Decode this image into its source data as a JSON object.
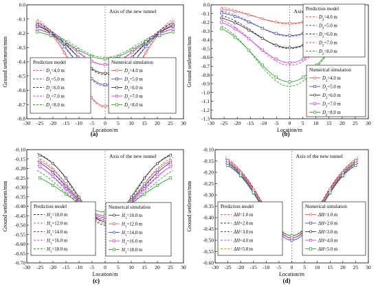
{
  "chart_data": [
    {
      "type": "line",
      "panel_label": "(a)",
      "xlabel": "Location/m",
      "ylabel": "Ground settlement/mm",
      "xlim": [
        -30,
        30
      ],
      "ylim": [
        -0.8,
        0
      ],
      "xticks": [
        -30,
        -25,
        -20,
        -15,
        -10,
        -5,
        0,
        5,
        10,
        15,
        20,
        25,
        30
      ],
      "yticks": [
        "0.0",
        "-0.1",
        "-0.2",
        "-0.3",
        "-0.4",
        "-0.5",
        "-0.6",
        "-0.7",
        "-0.8"
      ],
      "annotation": "Axis of the new tunnel",
      "legends": [
        {
          "title": "Prediction model",
          "entries": [
            "D1=4.0 m",
            "D1=5.0 m",
            "D1=6.0 m",
            "D1=7.0 m",
            "D1=8.0 m"
          ]
        },
        {
          "title": "Numerical simulation",
          "entries": [
            "D1=4.0 m",
            "D1=5.0 m",
            "D1=6.0 m",
            "D1=7.0 m",
            "D1=8.0 m"
          ]
        }
      ],
      "series": [
        {
          "group": "Prediction model",
          "entry": 0,
          "color": "#e06060",
          "style": "dashed",
          "peak": -0.72,
          "edge": -0.1,
          "edge_x": 26,
          "width": 12
        },
        {
          "group": "Prediction model",
          "entry": 1,
          "color": "#4a4ab8",
          "style": "dashed",
          "peak": -0.57,
          "edge": -0.12,
          "edge_x": 26,
          "width": 12
        },
        {
          "group": "Prediction model",
          "entry": 2,
          "color": "#333333",
          "style": "dashed",
          "peak": -0.49,
          "edge": -0.13,
          "edge_x": 26,
          "width": 12
        },
        {
          "group": "Prediction model",
          "entry": 3,
          "color": "#d040d0",
          "style": "dashed",
          "peak": -0.42,
          "edge": -0.15,
          "edge_x": 26,
          "width": 12
        },
        {
          "group": "Prediction model",
          "entry": 4,
          "color": "#30a030",
          "style": "dashed",
          "peak": -0.37,
          "edge": -0.17,
          "edge_x": 26,
          "width": 12
        },
        {
          "group": "Numerical simulation",
          "entry": 0,
          "color": "#e06060",
          "style": "solid",
          "peak": -0.71,
          "edge": -0.12,
          "edge_x": 26,
          "width": 12
        },
        {
          "group": "Numerical simulation",
          "entry": 1,
          "color": "#4a4ab8",
          "style": "solid",
          "peak": -0.56,
          "edge": -0.14,
          "edge_x": 26,
          "width": 12
        },
        {
          "group": "Numerical simulation",
          "entry": 2,
          "color": "#333333",
          "style": "solid",
          "peak": -0.48,
          "edge": -0.15,
          "edge_x": 26,
          "width": 12
        },
        {
          "group": "Numerical simulation",
          "entry": 3,
          "color": "#d040d0",
          "style": "solid",
          "peak": -0.42,
          "edge": -0.17,
          "edge_x": 26,
          "width": 12
        },
        {
          "group": "Numerical simulation",
          "entry": 4,
          "color": "#30a030",
          "style": "solid",
          "peak": -0.38,
          "edge": -0.19,
          "edge_x": 26,
          "width": 12
        }
      ]
    },
    {
      "type": "line",
      "panel_label": "(b)",
      "xlabel": "Location/m",
      "ylabel": "Ground settlement/mm",
      "xlim": [
        -30,
        30
      ],
      "ylim": [
        -1.3,
        0
      ],
      "xticks": [
        -30,
        -25,
        -20,
        -15,
        -10,
        -5,
        0,
        5,
        10,
        15,
        20,
        25,
        30
      ],
      "yticks": [
        "0.0",
        "-0.1",
        "-0.2",
        "-0.3",
        "-0.4",
        "-0.5",
        "-0.6",
        "-0.7",
        "-0.8",
        "-0.9",
        "-1.0",
        "-1.1",
        "-1.2",
        "-1.3"
      ],
      "annotation": "Axis of the new tunnel",
      "legends": [
        {
          "title": "Prediction model",
          "entries": [
            "D2=4.0 m",
            "D2=5.0 m",
            "D2=6.0 m",
            "D2=7.0 m",
            "D2=8.0 m"
          ]
        },
        {
          "title": "Numerical simulation",
          "entries": [
            "D2=4.0 m",
            "D2=5.0 m",
            "D2=6.0 m",
            "D2=7.0 m",
            "D2=8.0 m"
          ]
        }
      ],
      "series": [
        {
          "group": "Prediction model",
          "entry": 0,
          "color": "#e06060",
          "style": "dashed",
          "peak": -0.22,
          "edge": -0.03,
          "edge_x": 26,
          "width": 13
        },
        {
          "group": "Prediction model",
          "entry": 1,
          "color": "#4a4ab8",
          "style": "dashed",
          "peak": -0.36,
          "edge": -0.07,
          "edge_x": 26,
          "width": 13
        },
        {
          "group": "Prediction model",
          "entry": 2,
          "color": "#333333",
          "style": "dashed",
          "peak": -0.5,
          "edge": -0.12,
          "edge_x": 26,
          "width": 13
        },
        {
          "group": "Prediction model",
          "entry": 3,
          "color": "#d040d0",
          "style": "dashed",
          "peak": -0.69,
          "edge": -0.17,
          "edge_x": 26,
          "width": 13
        },
        {
          "group": "Prediction model",
          "entry": 4,
          "color": "#30a030",
          "style": "dashed",
          "peak": -0.93,
          "edge": -0.24,
          "edge_x": 26,
          "width": 13
        },
        {
          "group": "Numerical simulation",
          "entry": 0,
          "color": "#e06060",
          "style": "solid",
          "peak": -0.21,
          "edge": -0.05,
          "edge_x": 26,
          "width": 13
        },
        {
          "group": "Numerical simulation",
          "entry": 1,
          "color": "#4a4ab8",
          "style": "solid",
          "peak": -0.35,
          "edge": -0.09,
          "edge_x": 26,
          "width": 13
        },
        {
          "group": "Numerical simulation",
          "entry": 2,
          "color": "#333333",
          "style": "solid",
          "peak": -0.49,
          "edge": -0.15,
          "edge_x": 26,
          "width": 13
        },
        {
          "group": "Numerical simulation",
          "entry": 3,
          "color": "#d040d0",
          "style": "solid",
          "peak": -0.66,
          "edge": -0.2,
          "edge_x": 26,
          "width": 13
        },
        {
          "group": "Numerical simulation",
          "entry": 4,
          "color": "#30a030",
          "style": "solid",
          "peak": -0.88,
          "edge": -0.27,
          "edge_x": 26,
          "width": 13
        }
      ]
    },
    {
      "type": "line",
      "panel_label": "(c)",
      "xlabel": "Location/m",
      "ylabel": "Ground settlement/mm",
      "xlim": [
        -30,
        30
      ],
      "ylim": [
        -0.7,
        -0.1
      ],
      "xticks": [
        -30,
        -25,
        -20,
        -15,
        -10,
        -5,
        0,
        5,
        10,
        15,
        20,
        25,
        30
      ],
      "yticks": [
        "-0.10",
        "-0.15",
        "-0.20",
        "-0.25",
        "-0.30",
        "-0.35",
        "-0.40",
        "-0.45",
        "-0.50",
        "-0.55",
        "-0.60",
        "-0.65",
        "-0.70"
      ],
      "annotation": "Axis of the new tunnel",
      "legends": [
        {
          "title": "Prediction model",
          "entries": [
            "H1=10.0 m",
            "H1=12.0 m",
            "H1=14.0 m",
            "H1=16.0 m",
            "H1=18.0 m"
          ]
        },
        {
          "title": "Numerical simulation",
          "entries": [
            "H1=10.0 m",
            "H1=12.0 m",
            "H1=14.0 m",
            "H1=16.0 m",
            "H1=18.0 m"
          ]
        }
      ],
      "series": [
        {
          "group": "Prediction model",
          "entry": 0,
          "color": "#333333",
          "style": "dashed",
          "peak": -0.5,
          "edge": -0.12,
          "edge_x": 26,
          "width": 11
        },
        {
          "group": "Prediction model",
          "entry": 1,
          "color": "#e06060",
          "style": "dashed",
          "peak": -0.49,
          "edge": -0.14,
          "edge_x": 26,
          "width": 12
        },
        {
          "group": "Prediction model",
          "entry": 2,
          "color": "#4a4ab8",
          "style": "dashed",
          "peak": -0.48,
          "edge": -0.16,
          "edge_x": 26,
          "width": 13
        },
        {
          "group": "Prediction model",
          "entry": 3,
          "color": "#d040d0",
          "style": "dashed",
          "peak": -0.47,
          "edge": -0.18,
          "edge_x": 26,
          "width": 14
        },
        {
          "group": "Prediction model",
          "entry": 4,
          "color": "#30a030",
          "style": "dashed",
          "peak": -0.45,
          "edge": -0.21,
          "edge_x": 26,
          "width": 15
        },
        {
          "group": "Numerical simulation",
          "entry": 0,
          "color": "#333333",
          "style": "solid",
          "peak": -0.48,
          "edge": -0.13,
          "edge_x": 25,
          "width": 11
        },
        {
          "group": "Numerical simulation",
          "entry": 1,
          "color": "#e06060",
          "style": "solid",
          "peak": -0.47,
          "edge": -0.16,
          "edge_x": 25,
          "width": 12
        },
        {
          "group": "Numerical simulation",
          "entry": 2,
          "color": "#4a4ab8",
          "style": "solid",
          "peak": -0.46,
          "edge": -0.17,
          "edge_x": 25,
          "width": 13
        },
        {
          "group": "Numerical simulation",
          "entry": 3,
          "color": "#d040d0",
          "style": "solid",
          "peak": -0.45,
          "edge": -0.19,
          "edge_x": 25,
          "width": 14
        },
        {
          "group": "Numerical simulation",
          "entry": 4,
          "color": "#30a030",
          "style": "solid",
          "peak": -0.43,
          "edge": -0.25,
          "edge_x": 25,
          "width": 15
        }
      ]
    },
    {
      "type": "line",
      "panel_label": "(d)",
      "xlabel": "Location/m",
      "ylabel": "Ground settlement/mm",
      "xlim": [
        -30,
        30
      ],
      "ylim": [
        -0.6,
        -0.1
      ],
      "xticks": [
        -30,
        -25,
        -20,
        -15,
        -10,
        -5,
        0,
        5,
        10,
        15,
        20,
        25,
        30
      ],
      "yticks": [
        "-0.10",
        "-0.15",
        "-0.20",
        "-0.25",
        "-0.30",
        "-0.35",
        "-0.40",
        "-0.45",
        "-0.50",
        "-0.55",
        "-0.60"
      ],
      "annotation": "Axis of the new tunnel",
      "legends": [
        {
          "title": "Prediction model",
          "entries": [
            "ΔH=1.0 m",
            "ΔH=2.0 m",
            "ΔH=3.0 m",
            "ΔH=4.0 m",
            "ΔH=5.0 m"
          ]
        },
        {
          "title": "Numerical simulation",
          "entries": [
            "ΔH=1.0 m",
            "ΔH=2.0 m",
            "ΔH=3.0 m",
            "ΔH=4.0 m",
            "ΔH=5.0 m"
          ]
        }
      ],
      "series": [
        {
          "group": "Prediction model",
          "entry": 0,
          "color": "#e06060",
          "style": "dashed",
          "peak": -0.49,
          "edge": -0.15,
          "edge_x": 26,
          "width": 11
        },
        {
          "group": "Prediction model",
          "entry": 1,
          "color": "#333333",
          "style": "dashed",
          "peak": -0.48,
          "edge": -0.14,
          "edge_x": 26,
          "width": 11.5
        },
        {
          "group": "Prediction model",
          "entry": 2,
          "color": "#4a4ab8",
          "style": "dashed",
          "peak": -0.49,
          "edge": -0.16,
          "edge_x": 26,
          "width": 12
        },
        {
          "group": "Prediction model",
          "entry": 3,
          "color": "#d040d0",
          "style": "dashed",
          "peak": -0.48,
          "edge": -0.15,
          "edge_x": 26,
          "width": 12
        },
        {
          "group": "Prediction model",
          "entry": 4,
          "color": "#b8a030",
          "style": "dashed",
          "peak": -0.48,
          "edge": -0.13,
          "edge_x": 26,
          "width": 12.5
        },
        {
          "group": "Numerical simulation",
          "entry": 0,
          "color": "#e06060",
          "style": "solid",
          "peak": -0.49,
          "edge": -0.16,
          "edge_x": 25,
          "width": 11
        },
        {
          "group": "Numerical simulation",
          "entry": 1,
          "color": "#4a4ab8",
          "style": "solid",
          "peak": -0.5,
          "edge": -0.17,
          "edge_x": 25,
          "width": 11.5
        },
        {
          "group": "Numerical simulation",
          "entry": 2,
          "color": "#333333",
          "style": "solid",
          "peak": -0.49,
          "edge": -0.16,
          "edge_x": 25,
          "width": 12
        },
        {
          "group": "Numerical simulation",
          "entry": 3,
          "color": "#d040d0",
          "style": "solid",
          "peak": -0.49,
          "edge": -0.15,
          "edge_x": 25,
          "width": 12
        },
        {
          "group": "Numerical simulation",
          "entry": 4,
          "color": "#30a030",
          "style": "solid",
          "peak": -0.48,
          "edge": -0.16,
          "edge_x": 25,
          "width": 12.5
        }
      ]
    }
  ]
}
